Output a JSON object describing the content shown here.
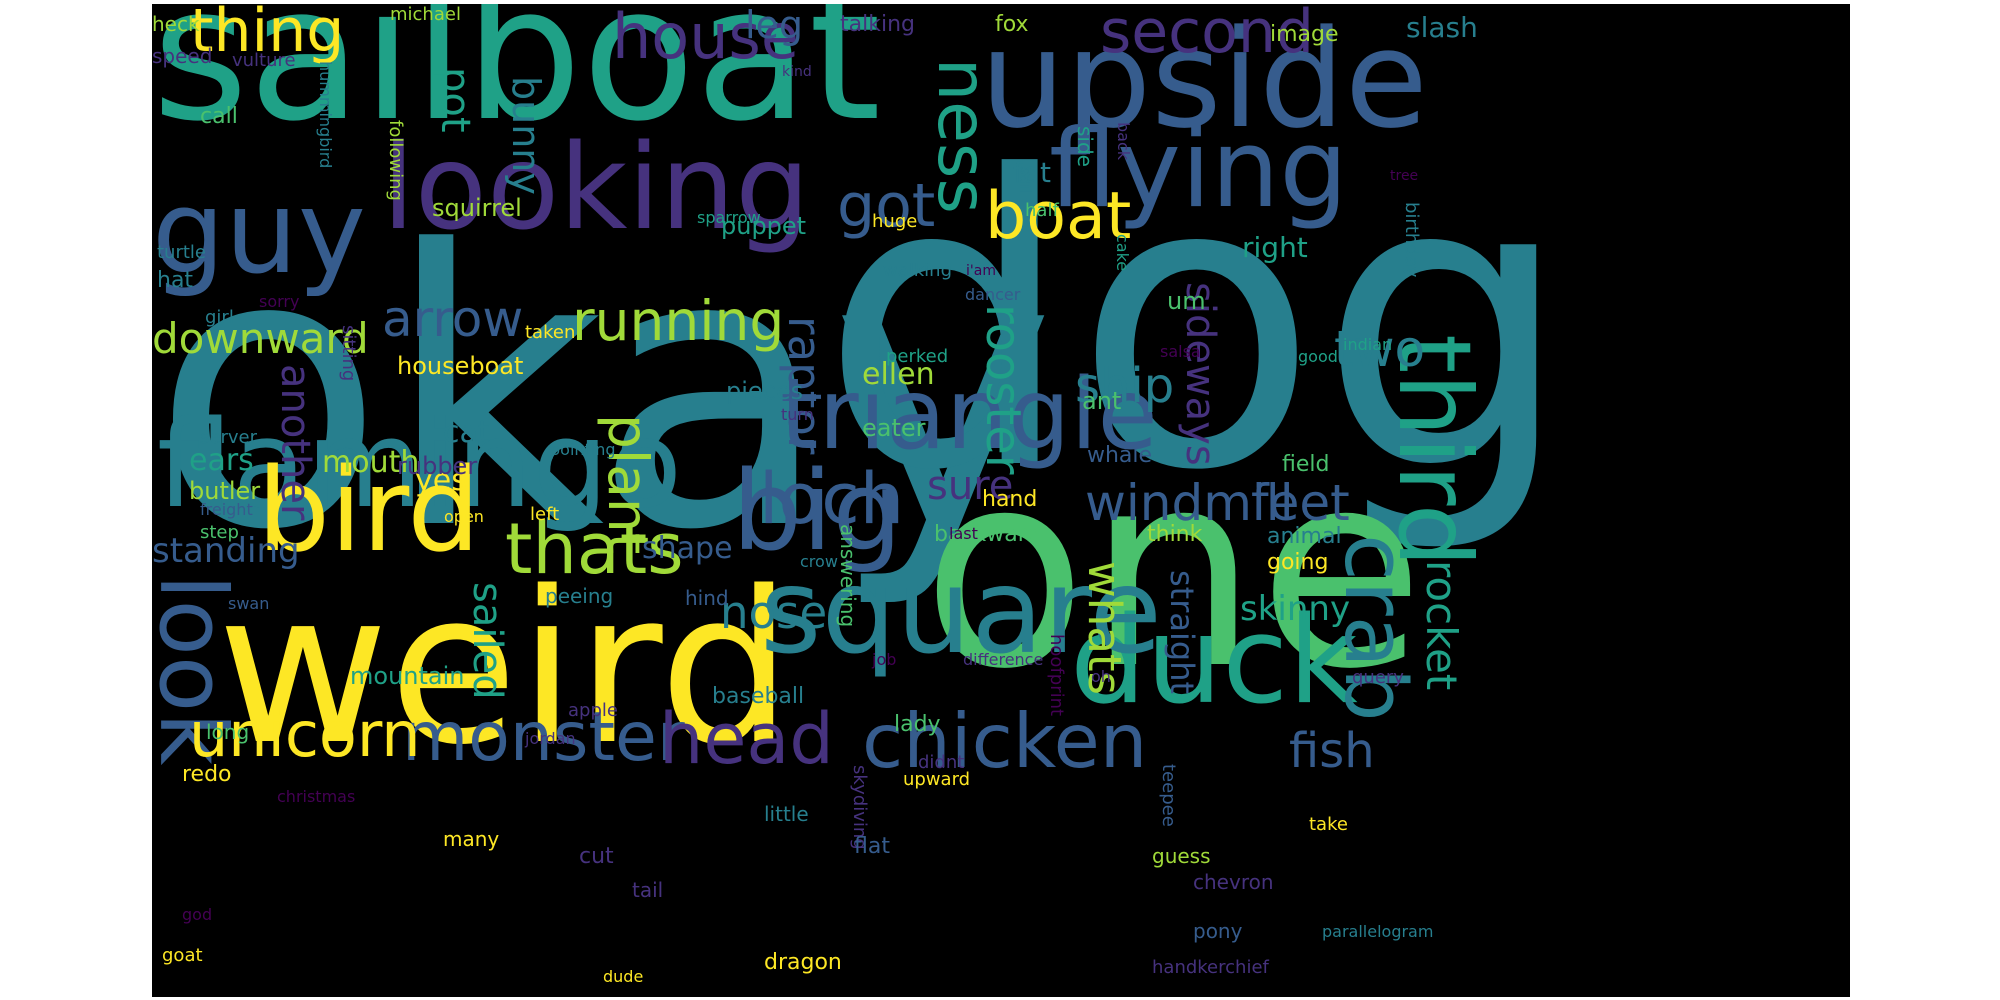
{
  "colors": {
    "background": "#000000",
    "page": "#ffffff",
    "palette": [
      "#440154",
      "#46327e",
      "#365c8d",
      "#277f8e",
      "#1fa187",
      "#4ac16d",
      "#a0da39",
      "#fde725"
    ]
  },
  "words": [
    {
      "text": "okay",
      "color": "#277f8e",
      "vertical": false
    },
    {
      "text": "dog",
      "color": "#277f8e",
      "vertical": false
    },
    {
      "text": "sailboat",
      "color": "#1fa187",
      "vertical": false
    },
    {
      "text": "one",
      "color": "#4ac16d",
      "vertical": false
    },
    {
      "text": "weird",
      "color": "#fde725",
      "vertical": false
    },
    {
      "text": "upside",
      "color": "#365c8d",
      "vertical": false
    },
    {
      "text": "flamingo",
      "color": "#277f8e",
      "vertical": false
    },
    {
      "text": "looking",
      "color": "#46327e",
      "vertical": false
    },
    {
      "text": "duck",
      "color": "#1fa187",
      "vertical": false
    },
    {
      "text": "square",
      "color": "#277f8e",
      "vertical": false
    },
    {
      "text": "triangle",
      "color": "#365c8d",
      "vertical": false
    },
    {
      "text": "guy",
      "color": "#365c8d",
      "vertical": false
    },
    {
      "text": "big",
      "color": "#365c8d",
      "vertical": false
    },
    {
      "text": "bird",
      "color": "#fde725",
      "vertical": false
    },
    {
      "text": "flying",
      "color": "#365c8d",
      "vertical": false
    },
    {
      "text": "third",
      "color": "#1fa187",
      "vertical": true
    },
    {
      "text": "chicken",
      "color": "#365c8d",
      "vertical": false
    },
    {
      "text": "monster",
      "color": "#365c8d",
      "vertical": false
    },
    {
      "text": "thats",
      "color": "#a0da39",
      "vertical": false
    },
    {
      "text": "look",
      "color": "#365c8d",
      "vertical": true
    },
    {
      "text": "crab",
      "color": "#277f8e",
      "vertical": true
    },
    {
      "text": "unicorn",
      "color": "#fde725",
      "vertical": false
    },
    {
      "text": "head",
      "color": "#46327e",
      "vertical": false
    },
    {
      "text": "boat",
      "color": "#fde725",
      "vertical": false
    },
    {
      "text": "loch",
      "color": "#365c8d",
      "vertical": false
    },
    {
      "text": "house",
      "color": "#46327e",
      "vertical": false
    },
    {
      "text": "running",
      "color": "#a0da39",
      "vertical": false
    },
    {
      "text": "ness",
      "color": "#1fa187",
      "vertical": true
    },
    {
      "text": "second",
      "color": "#46327e",
      "vertical": false
    },
    {
      "text": "thing",
      "color": "#fde725",
      "vertical": false
    },
    {
      "text": "got",
      "color": "#365c8d",
      "vertical": false
    },
    {
      "text": "arrow",
      "color": "#365c8d",
      "vertical": false
    },
    {
      "text": "plant",
      "color": "#a0da39",
      "vertical": true
    },
    {
      "text": "fish",
      "color": "#365c8d",
      "vertical": false
    },
    {
      "text": "windmill",
      "color": "#365c8d",
      "vertical": false
    },
    {
      "text": "feet",
      "color": "#365c8d",
      "vertical": false
    },
    {
      "text": "ship",
      "color": "#277f8e",
      "vertical": false
    },
    {
      "text": "two",
      "color": "#277f8e",
      "vertical": false
    },
    {
      "text": "downward",
      "color": "#a0da39",
      "vertical": false
    },
    {
      "text": "rooster",
      "color": "#1fa187",
      "vertical": true
    },
    {
      "text": "sideways",
      "color": "#46327e",
      "vertical": true
    },
    {
      "text": "raptor",
      "color": "#365c8d",
      "vertical": true
    },
    {
      "text": "whats",
      "color": "#a0da39",
      "vertical": true
    },
    {
      "text": "rocket",
      "color": "#1fa187",
      "vertical": true
    },
    {
      "text": "nose",
      "color": "#277f8e",
      "vertical": false
    },
    {
      "text": "sure",
      "color": "#46327e",
      "vertical": false
    },
    {
      "text": "sailed",
      "color": "#1fa187",
      "vertical": true
    },
    {
      "text": "another",
      "color": "#46327e",
      "vertical": true
    },
    {
      "text": "bunny",
      "color": "#277f8e",
      "vertical": true
    },
    {
      "text": "pot",
      "color": "#1fa187",
      "vertical": true
    },
    {
      "text": "leg",
      "color": "#365c8d",
      "vertical": false
    },
    {
      "text": "skinny",
      "color": "#1fa187",
      "vertical": false
    },
    {
      "text": "straight",
      "color": "#365c8d",
      "vertical": true
    },
    {
      "text": "standing",
      "color": "#365c8d",
      "vertical": false
    },
    {
      "text": "mouth",
      "color": "#a0da39",
      "vertical": false
    },
    {
      "text": "ellen",
      "color": "#a0da39",
      "vertical": false
    },
    {
      "text": "shape",
      "color": "#365c8d",
      "vertical": false
    },
    {
      "text": "cat",
      "color": "#277f8e",
      "vertical": false
    },
    {
      "text": "ears",
      "color": "#1fa187",
      "vertical": false
    },
    {
      "text": "yes",
      "color": "#fde725",
      "vertical": false
    },
    {
      "text": "fat",
      "color": "#277f8e",
      "vertical": false
    },
    {
      "text": "right",
      "color": "#1fa187",
      "vertical": false
    },
    {
      "text": "slash",
      "color": "#277f8e",
      "vertical": false
    },
    {
      "text": "mountain",
      "color": "#1fa187",
      "vertical": false
    },
    {
      "text": "squirrel",
      "color": "#a0da39",
      "vertical": false
    },
    {
      "text": "houseboat",
      "color": "#fde725",
      "vertical": false
    },
    {
      "text": "butler",
      "color": "#a0da39",
      "vertical": false
    },
    {
      "text": "rubber",
      "color": "#46327e",
      "vertical": false
    },
    {
      "text": "puppet",
      "color": "#1fa187",
      "vertical": false
    },
    {
      "text": "pieces",
      "color": "#277f8e",
      "vertical": false
    },
    {
      "text": "um",
      "color": "#4ac16d",
      "vertical": false
    },
    {
      "text": "ant",
      "color": "#4ac16d",
      "vertical": false
    },
    {
      "text": "eater",
      "color": "#4ac16d",
      "vertical": false
    },
    {
      "text": "backward",
      "color": "#4ac16d",
      "vertical": false
    },
    {
      "text": "think",
      "color": "#a0da39",
      "vertical": false
    },
    {
      "text": "animal",
      "color": "#277f8e",
      "vertical": false
    },
    {
      "text": "going",
      "color": "#fde725",
      "vertical": false
    },
    {
      "text": "field",
      "color": "#4ac16d",
      "vertical": false
    },
    {
      "text": "hand",
      "color": "#fde725",
      "vertical": false
    },
    {
      "text": "whale",
      "color": "#365c8d",
      "vertical": false
    },
    {
      "text": "image",
      "color": "#a0da39",
      "vertical": false
    },
    {
      "text": "talking",
      "color": "#46327e",
      "vertical": false
    },
    {
      "text": "fox",
      "color": "#a0da39",
      "vertical": false
    },
    {
      "text": "heck",
      "color": "#a0da39",
      "vertical": false
    },
    {
      "text": "michael",
      "color": "#a0da39",
      "vertical": false
    },
    {
      "text": "speed",
      "color": "#46327e",
      "vertical": false
    },
    {
      "text": "vulture",
      "color": "#46327e",
      "vertical": false
    },
    {
      "text": "call",
      "color": "#4ac16d",
      "vertical": false
    },
    {
      "text": "hummingbird",
      "color": "#277f8e",
      "vertical": true
    },
    {
      "text": "following",
      "color": "#a0da39",
      "vertical": true
    },
    {
      "text": "turtle",
      "color": "#277f8e",
      "vertical": false
    },
    {
      "text": "hat",
      "color": "#277f8e",
      "vertical": false
    },
    {
      "text": "girl",
      "color": "#277f8e",
      "vertical": false
    },
    {
      "text": "sorry",
      "color": "#440154",
      "vertical": false
    },
    {
      "text": "sitting",
      "color": "#46327e",
      "vertical": true
    },
    {
      "text": "taken",
      "color": "#fde725",
      "vertical": false
    },
    {
      "text": "server",
      "color": "#277f8e",
      "vertical": false
    },
    {
      "text": "freight",
      "color": "#365c8d",
      "vertical": false
    },
    {
      "text": "step",
      "color": "#4ac16d",
      "vertical": false
    },
    {
      "text": "swan",
      "color": "#365c8d",
      "vertical": false
    },
    {
      "text": "long",
      "color": "#4ac16d",
      "vertical": false
    },
    {
      "text": "redo",
      "color": "#fde725",
      "vertical": false
    },
    {
      "text": "christmas",
      "color": "#440154",
      "vertical": false
    },
    {
      "text": "many",
      "color": "#fde725",
      "vertical": false
    },
    {
      "text": "god",
      "color": "#440154",
      "vertical": false
    },
    {
      "text": "goat",
      "color": "#fde725",
      "vertical": false
    },
    {
      "text": "dude",
      "color": "#fde725",
      "vertical": false
    },
    {
      "text": "dragon",
      "color": "#fde725",
      "vertical": false
    },
    {
      "text": "pony",
      "color": "#365c8d",
      "vertical": false
    },
    {
      "text": "skydiving",
      "color": "#46327e",
      "vertical": true
    },
    {
      "text": "tail",
      "color": "#46327e",
      "vertical": false
    },
    {
      "text": "cut",
      "color": "#46327e",
      "vertical": false
    },
    {
      "text": "apple",
      "color": "#46327e",
      "vertical": false
    },
    {
      "text": "jordan",
      "color": "#46327e",
      "vertical": false
    },
    {
      "text": "answering",
      "color": "#4ac16d",
      "vertical": true
    },
    {
      "text": "baseball",
      "color": "#277f8e",
      "vertical": false
    },
    {
      "text": "little",
      "color": "#277f8e",
      "vertical": false
    },
    {
      "text": "flat",
      "color": "#365c8d",
      "vertical": false
    },
    {
      "text": "lady",
      "color": "#4ac16d",
      "vertical": false
    },
    {
      "text": "didnt",
      "color": "#46327e",
      "vertical": false
    },
    {
      "text": "upward",
      "color": "#fde725",
      "vertical": false
    },
    {
      "text": "hoofprint",
      "color": "#440154",
      "vertical": true
    },
    {
      "text": "teepee",
      "color": "#365c8d",
      "vertical": true
    },
    {
      "text": "guess",
      "color": "#a0da39",
      "vertical": false
    },
    {
      "text": "chevron",
      "color": "#46327e",
      "vertical": false
    },
    {
      "text": "handkerchief",
      "color": "#46327e",
      "vertical": false
    },
    {
      "text": "parallelogram",
      "color": "#277f8e",
      "vertical": false
    },
    {
      "text": "take",
      "color": "#fde725",
      "vertical": false
    },
    {
      "text": "query",
      "color": "#46327e",
      "vertical": false
    },
    {
      "text": "job",
      "color": "#440154",
      "vertical": false
    },
    {
      "text": "difference",
      "color": "#46327e",
      "vertical": false
    },
    {
      "text": "oh",
      "color": "#46327e",
      "vertical": false
    },
    {
      "text": "crow",
      "color": "#277f8e",
      "vertical": false
    },
    {
      "text": "hind",
      "color": "#365c8d",
      "vertical": false
    },
    {
      "text": "peeing",
      "color": "#277f8e",
      "vertical": false
    },
    {
      "text": "open",
      "color": "#fde725",
      "vertical": false
    },
    {
      "text": "left",
      "color": "#fde725",
      "vertical": false
    },
    {
      "text": "pointing",
      "color": "#277f8e",
      "vertical": false
    },
    {
      "text": "turn",
      "color": "#46327e",
      "vertical": false
    },
    {
      "text": "perked",
      "color": "#1fa187",
      "vertical": false
    },
    {
      "text": "salsa",
      "color": "#440154",
      "vertical": false
    },
    {
      "text": "last",
      "color": "#440154",
      "vertical": false
    },
    {
      "text": "walking",
      "color": "#277f8e",
      "vertical": false
    },
    {
      "text": "i'am",
      "color": "#440154",
      "vertical": false
    },
    {
      "text": "dancer",
      "color": "#365c8d",
      "vertical": false
    },
    {
      "text": "cake",
      "color": "#1fa187",
      "vertical": true
    },
    {
      "text": "half",
      "color": "#4ac16d",
      "vertical": false
    },
    {
      "text": "sail",
      "color": "#277f8e",
      "vertical": true
    },
    {
      "text": "huge",
      "color": "#fde725",
      "vertical": false
    },
    {
      "text": "sparrow",
      "color": "#1fa187",
      "vertical": false
    },
    {
      "text": "kind",
      "color": "#46327e",
      "vertical": false
    },
    {
      "text": "side",
      "color": "#1fa187",
      "vertical": true
    },
    {
      "text": "back",
      "color": "#46327e",
      "vertical": true
    },
    {
      "text": "tree",
      "color": "#440154",
      "vertical": false
    },
    {
      "text": "birthday",
      "color": "#277f8e",
      "vertical": true
    },
    {
      "text": "good",
      "color": "#1fa187",
      "vertical": false
    },
    {
      "text": "indian",
      "color": "#1fa187",
      "vertical": false
    }
  ]
}
